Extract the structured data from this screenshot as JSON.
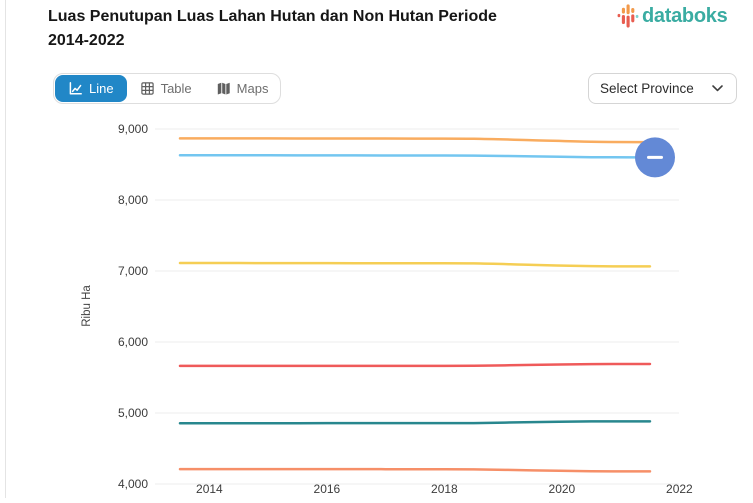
{
  "header": {
    "title_line1": "Luas Penutupan Luas Lahan Hutan dan Non Hutan Periode",
    "title_line2": "2014-2022",
    "brand": "databoks"
  },
  "toolbar": {
    "tabs": [
      {
        "label": "Line",
        "active": true
      },
      {
        "label": "Table",
        "active": false
      },
      {
        "label": "Maps",
        "active": false
      }
    ],
    "province_selector": {
      "label": "Select Province"
    }
  },
  "chart_data": {
    "type": "line",
    "title": "Luas Penutupan Luas Lahan Hutan dan Non Hutan Periode 2014-2022",
    "xlabel": "",
    "ylabel": "Ribu Ha",
    "x": [
      2014,
      2015,
      2016,
      2017,
      2018,
      2019,
      2020,
      2021,
      2022
    ],
    "x_tick_labels": [
      "2014",
      "2016",
      "2018",
      "2020",
      "2022"
    ],
    "ylim": [
      4000,
      9000
    ],
    "ytick_step": 1000,
    "grid": true,
    "legend": false,
    "grid_color": "#EDEDED",
    "tick_color": "#3C3C3C",
    "series": [
      {
        "name": "series-1-orange",
        "color": "#F9AC5F",
        "values": [
          8868,
          8868,
          8867,
          8866,
          8865,
          8863,
          8842,
          8820,
          8815
        ]
      },
      {
        "name": "series-2-light-blue",
        "color": "#73C6F0",
        "values": [
          8630,
          8630,
          8629,
          8628,
          8627,
          8625,
          8615,
          8603,
          8600
        ]
      },
      {
        "name": "series-3-yellow",
        "color": "#F5CE54",
        "values": [
          7112,
          7112,
          7111,
          7110,
          7109,
          7107,
          7086,
          7068,
          7065
        ]
      },
      {
        "name": "series-4-red",
        "color": "#EF5A5A",
        "values": [
          5663,
          5663,
          5663,
          5664,
          5664,
          5665,
          5678,
          5688,
          5690
        ]
      },
      {
        "name": "series-5-teal",
        "color": "#28878E",
        "values": [
          4856,
          4856,
          4856,
          4857,
          4857,
          4858,
          4872,
          4882,
          4882
        ]
      },
      {
        "name": "series-6-salmon",
        "color": "#F68F68",
        "values": [
          4210,
          4210,
          4209,
          4209,
          4208,
          4206,
          4192,
          4180,
          4178
        ]
      }
    ],
    "annotation_marker": {
      "series_index": 1,
      "point_index": 8,
      "color": "#6389D6",
      "glyph": "minus"
    }
  },
  "colors": {
    "accent_tab": "#2187C7",
    "brand_text": "#3AACA2",
    "logo_orange": "#F2994A",
    "logo_red": "#E85D50",
    "logo_teal": "#7FD4CF"
  }
}
